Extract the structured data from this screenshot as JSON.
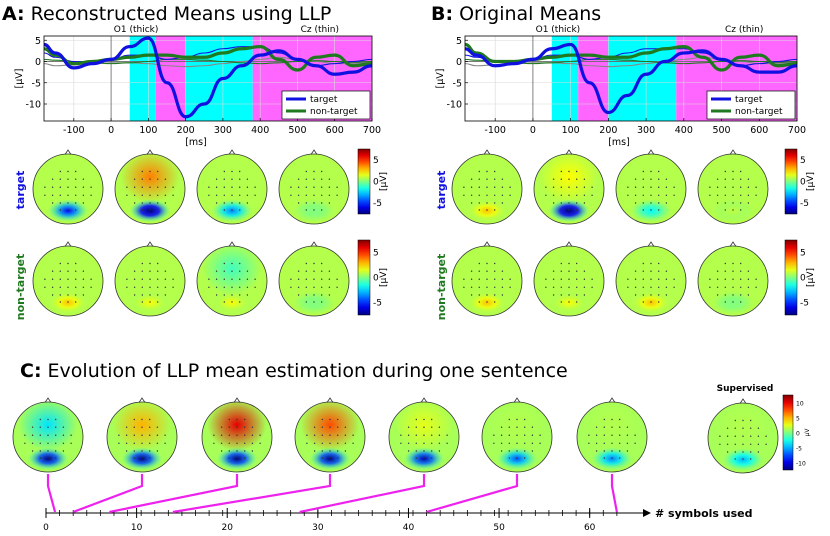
{
  "panels": {
    "A": {
      "letter": "A:",
      "title": "Reconstructed Means using LLP"
    },
    "B": {
      "letter": "B:",
      "title": "Original Means"
    },
    "C": {
      "letter": "C:",
      "title": "Evolution of LLP mean estimation during one sentence"
    }
  },
  "colors": {
    "target": "#1010e0",
    "nontarget": "#1f7a1f",
    "cyan_band": "#00ffff",
    "magenta_band": "#ff66ff",
    "connector": "#ee22ee"
  },
  "channel_labels": {
    "o1": "O1 (thick)",
    "cz": "Cz (thin)"
  },
  "row_labels": {
    "target": "target",
    "nontarget": "non-target"
  },
  "colorbar": {
    "unit": "[μV]",
    "ticks": [
      "5",
      "0",
      "-5"
    ],
    "unit_c": "μV",
    "ticks_c": [
      "10",
      "5",
      "0",
      "-5",
      "-10"
    ]
  },
  "supervised_label": "Supervised",
  "axis_c_label": "# symbols used",
  "chart_data": [
    {
      "type": "line",
      "panel": "A",
      "title": "Reconstructed Means using LLP",
      "xlabel": "[ms]",
      "ylabel": "[μV]",
      "xlim": [
        -180,
        700
      ],
      "ylim": [
        -14,
        6
      ],
      "xticks": [
        -100,
        0,
        100,
        200,
        300,
        400,
        500,
        600,
        700
      ],
      "yticks": [
        5,
        0,
        -5,
        -10
      ],
      "shaded_intervals": [
        {
          "from": 50,
          "to": 120,
          "color": "cyan"
        },
        {
          "from": 120,
          "to": 200,
          "color": "magenta"
        },
        {
          "from": 200,
          "to": 380,
          "color": "cyan"
        },
        {
          "from": 380,
          "to": 700,
          "color": "magenta"
        }
      ],
      "legend": [
        "target",
        "non-target"
      ],
      "x": [
        -180,
        -150,
        -100,
        -50,
        0,
        50,
        100,
        150,
        200,
        250,
        300,
        350,
        400,
        450,
        500,
        550,
        600,
        650,
        700
      ],
      "series": [
        {
          "name": "target O1 (thick)",
          "color": "target",
          "width": "thick",
          "values": [
            4,
            2,
            -1.5,
            -0.5,
            0.5,
            3.5,
            5.5,
            -5,
            -13,
            -10,
            -4,
            -1,
            1.5,
            2.5,
            0.5,
            -1,
            -3,
            -2.5,
            -1
          ]
        },
        {
          "name": "non-target O1 (thick)",
          "color": "nontarget",
          "width": "thick",
          "values": [
            3,
            1.5,
            -0.5,
            0,
            0.5,
            1,
            1.5,
            1.5,
            1,
            1,
            2,
            3,
            3.5,
            0.5,
            -2,
            1,
            1.5,
            -1,
            -0.5
          ]
        },
        {
          "name": "target Cz (thin)",
          "color": "target",
          "width": "thin",
          "values": [
            2,
            1,
            0,
            0,
            0.5,
            1.5,
            1.5,
            0.5,
            1,
            2,
            3,
            3.5,
            3.5,
            2,
            0.5,
            -1,
            -0.5,
            0,
            0.5
          ]
        },
        {
          "name": "non-target Cz (thin)",
          "color": "nontarget",
          "width": "thin",
          "values": [
            0.5,
            0.3,
            0,
            -0.3,
            -0.5,
            -0.3,
            0,
            0.5,
            0.5,
            0.3,
            0,
            -0.3,
            -0.5,
            -0.3,
            0,
            0.2,
            0,
            -0.2,
            0
          ]
        },
        {
          "name": "baseline Cz (gray)",
          "color": "gray",
          "width": "thin",
          "values": [
            -0.5,
            -1,
            -0.8,
            -0.5,
            -0.3,
            -0.3,
            -0.5,
            -1,
            -1.2,
            -1,
            -0.5,
            0,
            0.5,
            1,
            0.5,
            0,
            -0.5,
            -0.5,
            -0.3
          ]
        }
      ]
    },
    {
      "type": "line",
      "panel": "B",
      "title": "Original Means",
      "xlabel": "[ms]",
      "ylabel": "[μV]",
      "xlim": [
        -180,
        700
      ],
      "ylim": [
        -14,
        6
      ],
      "xticks": [
        -100,
        0,
        100,
        200,
        300,
        400,
        500,
        600,
        700
      ],
      "yticks": [
        5,
        0,
        -5,
        -10
      ],
      "shaded_intervals": [
        {
          "from": 50,
          "to": 120,
          "color": "cyan"
        },
        {
          "from": 120,
          "to": 200,
          "color": "magenta"
        },
        {
          "from": 200,
          "to": 380,
          "color": "cyan"
        },
        {
          "from": 380,
          "to": 700,
          "color": "magenta"
        }
      ],
      "legend": [
        "target",
        "non-target"
      ],
      "x": [
        -180,
        -150,
        -100,
        -50,
        0,
        50,
        100,
        150,
        200,
        250,
        300,
        350,
        400,
        450,
        500,
        550,
        600,
        650,
        700
      ],
      "series": [
        {
          "name": "target O1 (thick)",
          "color": "target",
          "width": "thick",
          "values": [
            3,
            1.5,
            -1,
            -0.5,
            0.5,
            3,
            4,
            -5,
            -12,
            -8,
            -3,
            0,
            2,
            2.5,
            0.5,
            -1,
            -2.5,
            -2.5,
            -1
          ]
        },
        {
          "name": "non-target O1 (thick)",
          "color": "nontarget",
          "width": "thick",
          "values": [
            4,
            2,
            0,
            0,
            0.5,
            1,
            1.5,
            1.5,
            1,
            1,
            2,
            3,
            3.5,
            1,
            -2,
            1,
            1.5,
            -1,
            -0.5
          ]
        },
        {
          "name": "target Cz (thin)",
          "color": "target",
          "width": "thin",
          "values": [
            1.5,
            1,
            0,
            0,
            0.5,
            1.5,
            1.5,
            0.5,
            1,
            2,
            3,
            3,
            3,
            2,
            0.5,
            -1,
            -0.5,
            0,
            0.5
          ]
        },
        {
          "name": "non-target Cz (thin)",
          "color": "nontarget",
          "width": "thin",
          "values": [
            0.5,
            0.3,
            0,
            -0.3,
            -0.5,
            -0.3,
            0,
            0.5,
            0.5,
            0.3,
            0,
            -0.3,
            -0.5,
            -0.3,
            0,
            0.2,
            0,
            -0.2,
            0
          ]
        },
        {
          "name": "baseline Cz (gray)",
          "color": "gray",
          "width": "thin",
          "values": [
            -0.5,
            -1,
            -0.8,
            -0.5,
            -0.3,
            -0.3,
            -0.5,
            -1,
            -1.2,
            -1,
            -0.5,
            0,
            0.5,
            1,
            0.5,
            0,
            -0.5,
            -0.5,
            -0.3
          ]
        }
      ]
    },
    {
      "type": "number-line",
      "panel": "C",
      "xlabel": "# symbols used",
      "xlim": [
        0,
        65
      ],
      "xticks": [
        0,
        10,
        20,
        30,
        40,
        50,
        60
      ],
      "minor_step": 1.5,
      "snapshot_positions": [
        1,
        3,
        7,
        14,
        28,
        42,
        63
      ]
    }
  ],
  "scalp_maps": {
    "A_target": [
      {
        "occ": -6,
        "front": 0
      },
      {
        "occ": -10,
        "front": 4
      },
      {
        "occ": -4,
        "front": 0
      },
      {
        "occ": 0,
        "front": 0
      }
    ],
    "A_nontarget": [
      {
        "occ": 3,
        "front": 0
      },
      {
        "occ": 2,
        "front": 0
      },
      {
        "occ": 2,
        "front": -1
      },
      {
        "occ": 0,
        "front": 0
      }
    ],
    "B_target": [
      {
        "occ": 3,
        "front": 0
      },
      {
        "occ": -10,
        "front": 2
      },
      {
        "occ": -2,
        "front": 0
      },
      {
        "occ": 1,
        "front": 0
      }
    ],
    "B_nontarget": [
      {
        "occ": 3,
        "front": 0
      },
      {
        "occ": 2,
        "front": 0
      },
      {
        "occ": 3,
        "front": 0
      },
      {
        "occ": 0,
        "front": 0
      }
    ],
    "C": [
      {
        "occ": -10,
        "front": -3
      },
      {
        "occ": -10,
        "front": 4
      },
      {
        "occ": -10,
        "front": 8
      },
      {
        "occ": -10,
        "front": 6
      },
      {
        "occ": -9,
        "front": 2
      },
      {
        "occ": -6,
        "front": 1
      },
      {
        "occ": -5,
        "front": 1
      }
    ],
    "supervised": {
      "occ": -4,
      "front": 1
    }
  }
}
